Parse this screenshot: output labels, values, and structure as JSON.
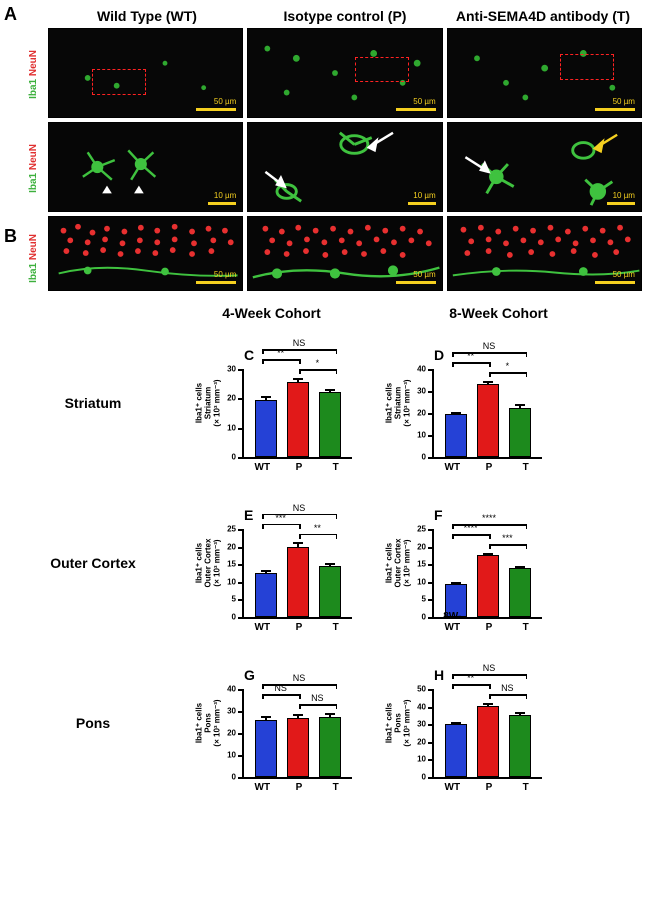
{
  "column_headers": [
    "Wild Type (WT)",
    "Isotype control (P)",
    "Anti-SEMA4D antibody (T)"
  ],
  "panel_A_label": "A",
  "panel_B_label": "B",
  "ylab_markers": {
    "green": "Iba1",
    "red": "NeuN"
  },
  "scalebars": {
    "top": "50 µm",
    "mid": "10 µm",
    "bottom": "50 µm"
  },
  "cohort_headers": [
    "4-Week Cohort",
    "8-Week Cohort"
  ],
  "row_labels": [
    "Striatum",
    "Outer Cortex",
    "Pons"
  ],
  "charts": [
    {
      "id": "C",
      "ylab": "Iba1⁺ cells\nStriatum\n(× 10³ mm⁻³)",
      "ymax": 30,
      "ystep": 10,
      "groups": [
        "WT",
        "P",
        "T"
      ],
      "values": [
        19.5,
        25.5,
        22.0
      ],
      "errors": [
        1.5,
        1.8,
        1.5
      ],
      "colors": [
        "#2541d6",
        "#e11919",
        "#1d8a1d"
      ],
      "sig_top": "NS",
      "sig_left": "**",
      "sig_right": "*"
    },
    {
      "id": "D",
      "ylab": "Iba1⁺ cells\nStriatum\n(× 10³ mm⁻³)",
      "ymax": 40,
      "ystep": 10,
      "groups": [
        "WT",
        "P",
        "T"
      ],
      "values": [
        19.5,
        33.0,
        22.5
      ],
      "errors": [
        1.5,
        2.0,
        1.8
      ],
      "colors": [
        "#2541d6",
        "#e11919",
        "#1d8a1d"
      ],
      "sig_top": "NS",
      "sig_left": "**",
      "sig_right": "*"
    },
    {
      "id": "E",
      "ylab": "Iba1⁺ cells\nOuter Cortex\n(× 10³ mm⁻³)",
      "ymax": 25,
      "ystep": 5,
      "groups": [
        "WT",
        "P",
        "T"
      ],
      "values": [
        12.5,
        20.0,
        14.5
      ],
      "errors": [
        1.2,
        1.5,
        1.2
      ],
      "colors": [
        "#2541d6",
        "#e11919",
        "#1d8a1d"
      ],
      "sig_top": "NS",
      "sig_left": "***",
      "sig_right": "**"
    },
    {
      "id": "F",
      "ylab": "Iba1⁺ cells\nOuter Cortex\n(× 10³ mm⁻³)",
      "ymax": 25,
      "ystep": 5,
      "groups": [
        "8W-WT",
        "P",
        "T"
      ],
      "values": [
        9.5,
        17.5,
        14.0
      ],
      "errors": [
        0.8,
        1.0,
        0.8
      ],
      "colors": [
        "#2541d6",
        "#e11919",
        "#1d8a1d"
      ],
      "sig_top": "****",
      "sig_left": "****",
      "sig_right": "***"
    },
    {
      "id": "G",
      "ylab": "Iba1⁺ cells\nPons\n(× 10³ mm⁻³)",
      "ymax": 40,
      "ystep": 10,
      "groups": [
        "WT",
        "P",
        "T"
      ],
      "values": [
        26.0,
        27.0,
        27.5
      ],
      "errors": [
        2.0,
        2.0,
        2.2
      ],
      "colors": [
        "#2541d6",
        "#e11919",
        "#1d8a1d"
      ],
      "sig_top": "NS",
      "sig_left": "NS",
      "sig_right": "NS"
    },
    {
      "id": "H",
      "ylab": "Iba1⁺ cells\nPons\n(× 10³ mm⁻³)",
      "ymax": 50,
      "ystep": 10,
      "groups": [
        "WT",
        "P",
        "T"
      ],
      "values": [
        30.0,
        40.5,
        35.0
      ],
      "errors": [
        2.0,
        2.2,
        2.5
      ],
      "colors": [
        "#2541d6",
        "#e11919",
        "#1d8a1d"
      ],
      "sig_top": "NS",
      "sig_left": "**",
      "sig_right": "NS"
    }
  ]
}
